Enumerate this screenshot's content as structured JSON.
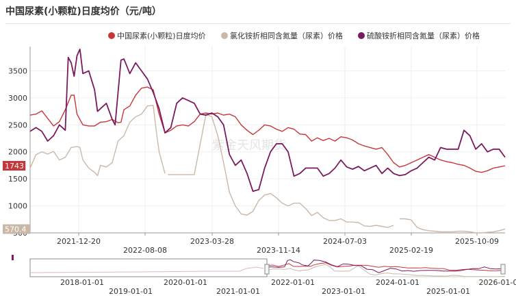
{
  "title": "中国尿素(小颗粒)日度均价（元/吨）",
  "watermark": "紫金天风期货",
  "chart_data": {
    "type": "line",
    "y_ticks": [
      500,
      1000,
      1500,
      2000,
      2500,
      3000,
      3500
    ],
    "ylim": [
      500,
      3950
    ],
    "x_ticks": [
      "2021-12-20",
      "2022-08-08",
      "2023-03-28",
      "2023-11-14",
      "2024-07-03",
      "2025-02-19",
      "2025-10-09"
    ],
    "x_tick_index": [
      0,
      1,
      0,
      1,
      0,
      1,
      0
    ],
    "last_value_labels": [
      {
        "series": 0,
        "text": "1743",
        "value": 1743
      },
      {
        "series": 1,
        "text": "570.4",
        "value": 570.4
      }
    ],
    "navigator_labels": [
      "2018-01-01",
      "2019-01-01",
      "2020-01-01",
      "2021-01-01",
      "2022-01-01",
      "2023-01-01",
      "2024-01-01",
      "2025-01-01",
      "2026-01-0"
    ],
    "series": [
      {
        "name": "中国尿素(小颗粒)日度均价",
        "color": "#c8363a",
        "dash": false,
        "points": [
          [
            0,
            2680
          ],
          [
            2,
            2700
          ],
          [
            4,
            2760
          ],
          [
            6,
            2620
          ],
          [
            8,
            2480
          ],
          [
            10,
            2560
          ],
          [
            12,
            2780
          ],
          [
            14,
            3050
          ],
          [
            15,
            3050
          ],
          [
            16,
            2700
          ],
          [
            18,
            2500
          ],
          [
            20,
            2480
          ],
          [
            22,
            2480
          ],
          [
            24,
            2550
          ],
          [
            26,
            2560
          ],
          [
            28,
            2600
          ],
          [
            30,
            2540
          ],
          [
            31,
            2550
          ],
          [
            32,
            2780
          ],
          [
            34,
            2850
          ],
          [
            36,
            3050
          ],
          [
            38,
            3180
          ],
          [
            40,
            3200
          ],
          [
            42,
            3150
          ],
          [
            44,
            2700
          ],
          [
            46,
            2350
          ],
          [
            48,
            2400
          ],
          [
            50,
            2480
          ],
          [
            52,
            2500
          ],
          [
            54,
            2480
          ],
          [
            56,
            2560
          ],
          [
            58,
            2700
          ],
          [
            60,
            2720
          ],
          [
            62,
            2700
          ],
          [
            64,
            2720
          ],
          [
            66,
            2680
          ],
          [
            68,
            2700
          ],
          [
            70,
            2650
          ],
          [
            72,
            2500
          ],
          [
            74,
            2400
          ],
          [
            76,
            2320
          ],
          [
            78,
            2400
          ],
          [
            80,
            2500
          ],
          [
            82,
            2480
          ],
          [
            84,
            2420
          ],
          [
            86,
            2380
          ],
          [
            88,
            2450
          ],
          [
            90,
            2420
          ],
          [
            92,
            2330
          ],
          [
            94,
            2320
          ],
          [
            96,
            2200
          ],
          [
            98,
            2260
          ],
          [
            100,
            2210
          ],
          [
            102,
            2250
          ],
          [
            104,
            2200
          ],
          [
            106,
            2280
          ],
          [
            108,
            2260
          ],
          [
            110,
            2220
          ],
          [
            112,
            2150
          ],
          [
            114,
            2110
          ],
          [
            116,
            2080
          ],
          [
            118,
            2050
          ],
          [
            120,
            2080
          ],
          [
            122,
            1950
          ],
          [
            124,
            1800
          ],
          [
            126,
            1720
          ],
          [
            128,
            1750
          ],
          [
            130,
            1800
          ],
          [
            132,
            1850
          ],
          [
            134,
            1900
          ],
          [
            136,
            1950
          ],
          [
            138,
            1900
          ],
          [
            140,
            1850
          ],
          [
            142,
            1820
          ],
          [
            144,
            1800
          ],
          [
            146,
            1770
          ],
          [
            148,
            1750
          ],
          [
            150,
            1700
          ],
          [
            152,
            1640
          ],
          [
            154,
            1620
          ],
          [
            156,
            1650
          ],
          [
            158,
            1700
          ],
          [
            160,
            1720
          ],
          [
            162,
            1743
          ]
        ]
      },
      {
        "name": "氯化铵折相同含氮量（尿素）价格",
        "color": "#c9b8a8",
        "dash": false,
        "gaps_after": [
          46,
          124
        ],
        "points": [
          [
            0,
            1700
          ],
          [
            2,
            1950
          ],
          [
            4,
            2000
          ],
          [
            6,
            1960
          ],
          [
            8,
            2010
          ],
          [
            10,
            1850
          ],
          [
            12,
            1900
          ],
          [
            14,
            2080
          ],
          [
            16,
            2100
          ],
          [
            17,
            2080
          ],
          [
            18,
            1850
          ],
          [
            20,
            1700
          ],
          [
            22,
            1620
          ],
          [
            23,
            1560
          ],
          [
            24,
            1750
          ],
          [
            26,
            1720
          ],
          [
            28,
            1800
          ],
          [
            30,
            2200
          ],
          [
            32,
            2300
          ],
          [
            34,
            2550
          ],
          [
            36,
            2650
          ],
          [
            38,
            2700
          ],
          [
            40,
            2850
          ],
          [
            42,
            2860
          ],
          [
            43,
            2400
          ],
          [
            44,
            2000
          ],
          [
            46,
            1600
          ],
          [
            47,
            1580
          ],
          [
            49,
            1580
          ],
          [
            51,
            1580
          ],
          [
            53,
            1580
          ],
          [
            55,
            1580
          ],
          [
            56,
            1580
          ],
          [
            60,
            2700
          ],
          [
            62,
            2650
          ],
          [
            64,
            2300
          ],
          [
            66,
            1800
          ],
          [
            68,
            1250
          ],
          [
            70,
            1000
          ],
          [
            72,
            850
          ],
          [
            74,
            830
          ],
          [
            76,
            900
          ],
          [
            78,
            1100
          ],
          [
            80,
            1200
          ],
          [
            82,
            1230
          ],
          [
            84,
            1150
          ],
          [
            86,
            1050
          ],
          [
            88,
            1000
          ],
          [
            90,
            1050
          ],
          [
            92,
            1050
          ],
          [
            94,
            950
          ],
          [
            96,
            820
          ],
          [
            98,
            880
          ],
          [
            100,
            780
          ],
          [
            102,
            730
          ],
          [
            104,
            730
          ],
          [
            106,
            760
          ],
          [
            108,
            700
          ],
          [
            110,
            700
          ],
          [
            112,
            690
          ],
          [
            114,
            630
          ],
          [
            116,
            620
          ],
          [
            118,
            640
          ],
          [
            120,
            620
          ],
          [
            122,
            600
          ],
          [
            124,
            640
          ],
          [
            126,
            760
          ],
          [
            128,
            760
          ],
          [
            130,
            740
          ],
          [
            132,
            600
          ],
          [
            134,
            560
          ],
          [
            136,
            540
          ],
          [
            138,
            530
          ],
          [
            140,
            520
          ],
          [
            142,
            520
          ],
          [
            144,
            520
          ],
          [
            146,
            530
          ],
          [
            148,
            530
          ],
          [
            150,
            520
          ],
          [
            152,
            500
          ],
          [
            154,
            500
          ],
          [
            156,
            510
          ],
          [
            158,
            520
          ],
          [
            160,
            540
          ],
          [
            162,
            570.4
          ]
        ]
      },
      {
        "name": "硫酸铵折相同含氮量（尿素）价格",
        "color": "#7a1a5e",
        "dash": false,
        "points": [
          [
            0,
            2380
          ],
          [
            2,
            2450
          ],
          [
            4,
            2380
          ],
          [
            6,
            2200
          ],
          [
            8,
            2300
          ],
          [
            10,
            2500
          ],
          [
            12,
            2400
          ],
          [
            13,
            3750
          ],
          [
            14,
            3650
          ],
          [
            15,
            3400
          ],
          [
            16,
            3780
          ],
          [
            17,
            3900
          ],
          [
            18,
            3450
          ],
          [
            20,
            3500
          ],
          [
            22,
            3150
          ],
          [
            23,
            2750
          ],
          [
            24,
            2800
          ],
          [
            26,
            2900
          ],
          [
            28,
            2600
          ],
          [
            29,
            2500
          ],
          [
            30,
            3100
          ],
          [
            31,
            3700
          ],
          [
            32,
            3720
          ],
          [
            34,
            3450
          ],
          [
            36,
            3650
          ],
          [
            38,
            3500
          ],
          [
            40,
            3350
          ],
          [
            42,
            3100
          ],
          [
            44,
            2800
          ],
          [
            46,
            2350
          ],
          [
            48,
            2450
          ],
          [
            50,
            2900
          ],
          [
            52,
            3000
          ],
          [
            54,
            2950
          ],
          [
            56,
            2900
          ],
          [
            58,
            2700
          ],
          [
            60,
            2680
          ],
          [
            62,
            2720
          ],
          [
            64,
            2650
          ],
          [
            66,
            2500
          ],
          [
            68,
            1950
          ],
          [
            70,
            1750
          ],
          [
            72,
            1850
          ],
          [
            74,
            1600
          ],
          [
            76,
            1270
          ],
          [
            78,
            1300
          ],
          [
            80,
            1700
          ],
          [
            82,
            2000
          ],
          [
            84,
            2150
          ],
          [
            86,
            2150
          ],
          [
            88,
            2000
          ],
          [
            90,
            1550
          ],
          [
            92,
            1600
          ],
          [
            94,
            1700
          ],
          [
            96,
            1700
          ],
          [
            98,
            1700
          ],
          [
            100,
            1550
          ],
          [
            102,
            1600
          ],
          [
            104,
            1700
          ],
          [
            106,
            1850
          ],
          [
            108,
            1720
          ],
          [
            110,
            1680
          ],
          [
            112,
            1730
          ],
          [
            114,
            1650
          ],
          [
            116,
            1700
          ],
          [
            118,
            1750
          ],
          [
            120,
            1600
          ],
          [
            122,
            1700
          ],
          [
            124,
            1600
          ],
          [
            126,
            1560
          ],
          [
            128,
            1580
          ],
          [
            130,
            1650
          ],
          [
            132,
            1700
          ],
          [
            134,
            1800
          ],
          [
            136,
            1900
          ],
          [
            138,
            1850
          ],
          [
            140,
            2080
          ],
          [
            142,
            2050
          ],
          [
            144,
            2050
          ],
          [
            146,
            2050
          ],
          [
            148,
            2400
          ],
          [
            150,
            2300
          ],
          [
            152,
            2050
          ],
          [
            154,
            2150
          ],
          [
            156,
            2000
          ],
          [
            158,
            2050
          ],
          [
            160,
            2050
          ],
          [
            162,
            1900
          ]
        ]
      }
    ]
  }
}
